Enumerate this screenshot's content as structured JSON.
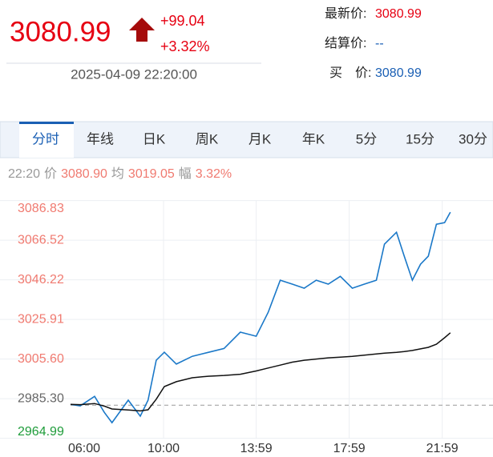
{
  "header": {
    "price": "3080.99",
    "change": "+99.04",
    "change_pct": "+3.32%",
    "time": "2025-04-09 22:20:00",
    "fields": [
      {
        "label": "最新价:",
        "value": "3080.99"
      },
      {
        "label": "结算价:",
        "value": "--"
      },
      {
        "label": "买　价:",
        "value": "3080.99"
      }
    ]
  },
  "tabs": [
    "分时",
    "年线",
    "日K",
    "周K",
    "月K",
    "年K",
    "5分",
    "15分",
    "30分"
  ],
  "info": [
    "22:20",
    "价",
    "3080.90",
    "均",
    "3019.05",
    "幅",
    "3.32%"
  ],
  "chart_data": {
    "type": "line",
    "x": [
      "06:00",
      "06:25",
      "07:02",
      "07:27",
      "07:47",
      "08:29",
      "09:00",
      "09:20",
      "09:41",
      "10:02",
      "10:33",
      "11:14",
      "11:55",
      "12:36",
      "13:18",
      "13:59",
      "14:30",
      "15:01",
      "15:32",
      "16:03",
      "16:34",
      "17:05",
      "17:36",
      "18:07",
      "18:38",
      "19:09",
      "19:30",
      "20:01",
      "20:21",
      "20:42",
      "21:03",
      "21:23",
      "21:44",
      "22:05",
      "22:20"
    ],
    "series": [
      {
        "color": "#1a78c8",
        "values": [
          2982.4,
          2981.6,
          2986.5,
          2978.3,
          2973.0,
          2984.5,
          2976.3,
          2984.5,
          3005.0,
          3009.1,
          3003.0,
          3007.0,
          3009.0,
          3011.0,
          3019.4,
          3017.3,
          3029.6,
          3046.0,
          3044.0,
          3041.9,
          3046.0,
          3044.0,
          3048.0,
          3041.9,
          3044.0,
          3046.0,
          3064.5,
          3070.6,
          3058.3,
          3046.0,
          3054.2,
          3058.3,
          3074.7,
          3075.5,
          3080.9
        ]
      },
      {
        "color": "#111111",
        "values": [
          2982.4,
          2982.2,
          2982.8,
          2981.5,
          2980.0,
          2979.5,
          2979.0,
          2979.6,
          2985.0,
          2991.5,
          2994.0,
          2996.0,
          2996.8,
          2997.2,
          2997.8,
          2999.5,
          3001.0,
          3002.5,
          3004.0,
          3005.0,
          3005.6,
          3006.2,
          3006.6,
          3007.0,
          3007.6,
          3008.2,
          3008.6,
          3009.0,
          3009.4,
          3010.0,
          3010.8,
          3011.6,
          3013.2,
          3016.5,
          3019.05
        ]
      }
    ],
    "ylim": [
      2964.99,
      3086.83
    ],
    "yticks": [
      {
        "value": 2964.99,
        "label": "2964.99"
      },
      {
        "value": 2985.3,
        "label": "2985.30"
      },
      {
        "value": 3005.6,
        "label": "3005.60"
      },
      {
        "value": 3025.91,
        "label": "3025.91"
      },
      {
        "value": 3046.22,
        "label": "3046.22"
      },
      {
        "value": 3066.52,
        "label": "3066.52"
      },
      {
        "value": 3086.83,
        "label": "3086.83"
      }
    ],
    "ytick_colors": [
      "#1e9c3a",
      "#666666",
      "#f07a70",
      "#f07a70",
      "#f07a70",
      "#f07a70",
      "#f07a70"
    ],
    "xlim": [
      "06:00",
      "24:10"
    ],
    "xticks": [
      "06:00",
      "10:00",
      "13:59",
      "17:59",
      "21:59"
    ],
    "reference_line": 2981.95,
    "grid": true
  }
}
